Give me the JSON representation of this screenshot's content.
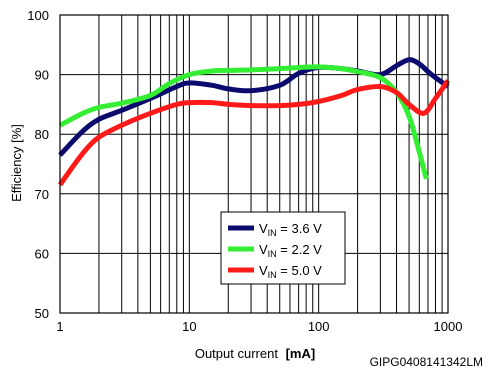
{
  "chart_data": {
    "type": "line",
    "xlabel": "Output current",
    "xlabel_unit": "[mA]",
    "ylabel": "Efficiency [%]",
    "x_scale": "log",
    "xlim": [
      1,
      1000
    ],
    "ylim": [
      50,
      100
    ],
    "x_ticks": [
      "1",
      "10",
      "100",
      "1000"
    ],
    "y_ticks": [
      "50",
      "60",
      "70",
      "80",
      "90",
      "100"
    ],
    "grid": true,
    "legend_position": "bottom-center",
    "code": "GIPG0408141342LM",
    "series": [
      {
        "label_prefix": "V",
        "label_sub": "IN",
        "label_suffix": " = 3.6 V",
        "color": "#0b0b6e",
        "points": [
          [
            1,
            76.5
          ],
          [
            1.5,
            80.5
          ],
          [
            2,
            82.5
          ],
          [
            3,
            84
          ],
          [
            5,
            86
          ],
          [
            8,
            88
          ],
          [
            10,
            88.6
          ],
          [
            15,
            88.2
          ],
          [
            20,
            87.6
          ],
          [
            30,
            87.3
          ],
          [
            50,
            88.2
          ],
          [
            70,
            90.2
          ],
          [
            100,
            91.2
          ],
          [
            150,
            91
          ],
          [
            200,
            90.6
          ],
          [
            300,
            90
          ],
          [
            400,
            91.5
          ],
          [
            500,
            92.5
          ],
          [
            600,
            91.8
          ],
          [
            700,
            90.5
          ],
          [
            800,
            89.5
          ],
          [
            1000,
            88
          ]
        ]
      },
      {
        "label_prefix": "V",
        "label_sub": "IN",
        "label_suffix": " = 2.2 V",
        "color": "#33ee33",
        "points": [
          [
            1,
            81.5
          ],
          [
            1.5,
            83.5
          ],
          [
            2,
            84.5
          ],
          [
            3,
            85.2
          ],
          [
            5,
            86.5
          ],
          [
            7,
            88.5
          ],
          [
            10,
            90
          ],
          [
            15,
            90.6
          ],
          [
            20,
            90.7
          ],
          [
            30,
            90.8
          ],
          [
            50,
            91
          ],
          [
            70,
            91.2
          ],
          [
            100,
            91.3
          ],
          [
            150,
            91
          ],
          [
            200,
            90.5
          ],
          [
            300,
            89.5
          ],
          [
            400,
            87
          ],
          [
            500,
            83
          ],
          [
            600,
            77
          ],
          [
            680,
            72.5
          ]
        ]
      },
      {
        "label_prefix": "V",
        "label_sub": "IN",
        "label_suffix": " = 5.0 V",
        "color": "#ff1a1a",
        "points": [
          [
            1,
            71.5
          ],
          [
            1.3,
            75
          ],
          [
            1.6,
            77.5
          ],
          [
            2,
            79.5
          ],
          [
            3,
            81.5
          ],
          [
            5,
            83.5
          ],
          [
            8,
            85
          ],
          [
            10,
            85.3
          ],
          [
            15,
            85.3
          ],
          [
            20,
            85
          ],
          [
            30,
            84.8
          ],
          [
            50,
            84.8
          ],
          [
            70,
            85
          ],
          [
            100,
            85.5
          ],
          [
            150,
            86.5
          ],
          [
            200,
            87.5
          ],
          [
            300,
            88
          ],
          [
            400,
            87
          ],
          [
            500,
            85
          ],
          [
            650,
            83.5
          ],
          [
            800,
            86
          ],
          [
            1000,
            89
          ]
        ]
      }
    ]
  }
}
